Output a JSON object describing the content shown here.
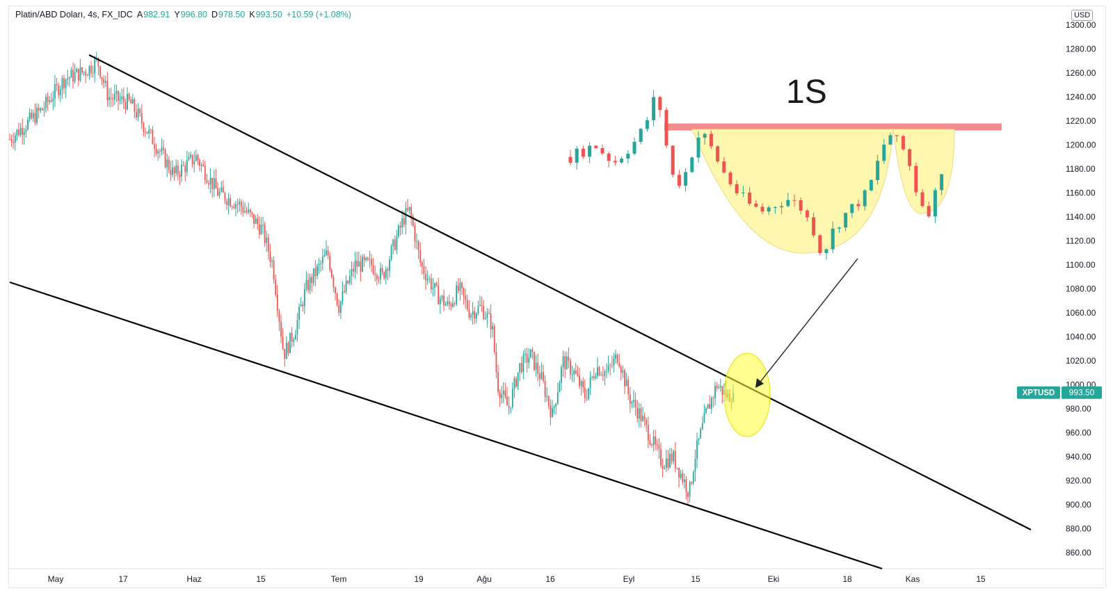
{
  "legend": {
    "symbol": "Platin/ABD Doları, 4s, FX_IDC",
    "open_label": "A",
    "open": "982.91",
    "high_label": "Y",
    "high": "996.80",
    "low_label": "D",
    "low": "978.50",
    "close_label": "K",
    "close": "993.50",
    "change": "+10.59 (+1.08%)"
  },
  "currency": "USD",
  "annotation_text": "1S",
  "price_tag": {
    "ticker": "XPTUSD",
    "value": "993.50"
  },
  "colors": {
    "up": "#26a69a",
    "down": "#ef5350",
    "trendline": "#000000",
    "resistance": "#f28b8b",
    "highlight": "#ffff33",
    "cup_fill": "#fff7b0",
    "axis_text": "#131722"
  },
  "chart_data": {
    "type": "candlestick",
    "title": "Platin/ABD Doları, 4s, FX_IDC",
    "y_unit": "USD",
    "y_axis": {
      "ticks": [
        "860.00",
        "880.00",
        "900.00",
        "920.00",
        "940.00",
        "960.00",
        "980.00",
        "1000.00",
        "1020.00",
        "1040.00",
        "1060.00",
        "1080.00",
        "1100.00",
        "1120.00",
        "1140.00",
        "1160.00",
        "1180.00",
        "1200.00",
        "1220.00",
        "1240.00",
        "1260.00",
        "1280.00",
        "1300.00"
      ],
      "range": [
        858,
        1312
      ]
    },
    "x_axis": {
      "ticks": [
        "May",
        "17",
        "Haz",
        "15",
        "Tem",
        "19",
        "Ağu",
        "16",
        "Eyl",
        "15",
        "Eki",
        "18",
        "Kas",
        "15"
      ]
    },
    "price_path": [
      [
        0,
        1205
      ],
      [
        6,
        1230
      ],
      [
        10,
        1255
      ],
      [
        14,
        1262
      ],
      [
        16,
        1270
      ],
      [
        18,
        1240
      ],
      [
        22,
        1235
      ],
      [
        26,
        1205
      ],
      [
        30,
        1175
      ],
      [
        34,
        1190
      ],
      [
        38,
        1160
      ],
      [
        42,
        1150
      ],
      [
        46,
        1130
      ],
      [
        48,
        1100
      ],
      [
        50,
        1025
      ],
      [
        52,
        1045
      ],
      [
        54,
        1080
      ],
      [
        58,
        1110
      ],
      [
        60,
        1065
      ],
      [
        63,
        1100
      ],
      [
        66,
        1100
      ],
      [
        68,
        1090
      ],
      [
        70,
        1115
      ],
      [
        72,
        1140
      ],
      [
        73,
        1145
      ],
      [
        75,
        1100
      ],
      [
        78,
        1075
      ],
      [
        80,
        1065
      ],
      [
        82,
        1080
      ],
      [
        84,
        1060
      ],
      [
        86,
        1065
      ],
      [
        88,
        1050
      ],
      [
        89,
        1000
      ],
      [
        91,
        980
      ],
      [
        93,
        1015
      ],
      [
        95,
        1025
      ],
      [
        97,
        1005
      ],
      [
        99,
        975
      ],
      [
        101,
        1020
      ],
      [
        103,
        1010
      ],
      [
        105,
        990
      ],
      [
        107,
        1015
      ],
      [
        109,
        1010
      ],
      [
        111,
        1025
      ],
      [
        113,
        990
      ],
      [
        115,
        975
      ],
      [
        117,
        955
      ],
      [
        119,
        935
      ],
      [
        121,
        940
      ],
      [
        123,
        920
      ],
      [
        124,
        910
      ],
      [
        125,
        940
      ],
      [
        127,
        975
      ],
      [
        129,
        1000
      ],
      [
        131,
        990
      ],
      [
        132,
        993.5
      ]
    ],
    "inset_path": [
      [
        0,
        1190
      ],
      [
        4,
        1200
      ],
      [
        7,
        1185
      ],
      [
        10,
        1200
      ],
      [
        12,
        1215
      ],
      [
        13,
        1230
      ],
      [
        14,
        1245
      ],
      [
        15,
        1215
      ],
      [
        16,
        1185
      ],
      [
        17,
        1165
      ],
      [
        19,
        1180
      ],
      [
        20,
        1200
      ],
      [
        21,
        1210
      ],
      [
        22,
        1205
      ],
      [
        23,
        1195
      ],
      [
        25,
        1175
      ],
      [
        27,
        1160
      ],
      [
        29,
        1150
      ],
      [
        31,
        1145
      ],
      [
        33,
        1150
      ],
      [
        35,
        1155
      ],
      [
        37,
        1150
      ],
      [
        38,
        1140
      ],
      [
        39,
        1135
      ],
      [
        40,
        1115
      ],
      [
        41,
        1110
      ],
      [
        42,
        1125
      ],
      [
        44,
        1140
      ],
      [
        46,
        1150
      ],
      [
        48,
        1160
      ],
      [
        50,
        1190
      ],
      [
        51,
        1205
      ],
      [
        52,
        1210
      ],
      [
        53,
        1200
      ],
      [
        54,
        1195
      ],
      [
        55,
        1180
      ],
      [
        56,
        1160
      ],
      [
        57,
        1150
      ],
      [
        58,
        1145
      ],
      [
        59,
        1160
      ],
      [
        60,
        1180
      ]
    ],
    "annotations": {
      "upper_trendline": [
        [
          0,
          1273
        ],
        [
          85,
          1001
        ]
      ],
      "lower_trendline": [
        [
          0,
          1090
        ],
        [
          85,
          901
        ]
      ],
      "resistance_level": 1215,
      "pattern_label": "1S"
    }
  }
}
